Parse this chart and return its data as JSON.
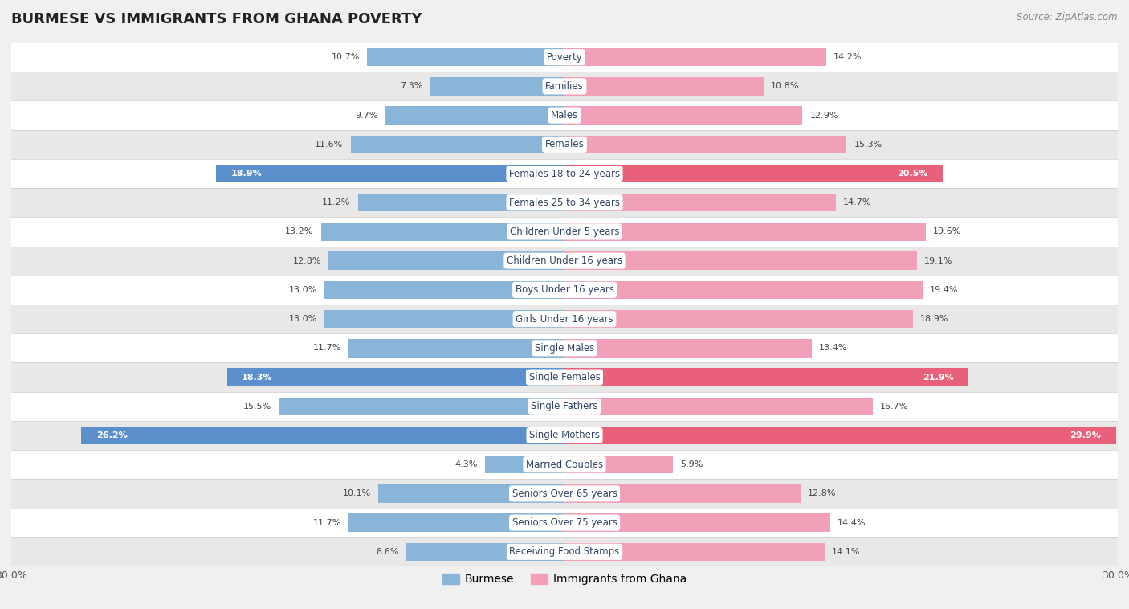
{
  "title": "BURMESE VS IMMIGRANTS FROM GHANA POVERTY",
  "source": "Source: ZipAtlas.com",
  "categories": [
    "Poverty",
    "Families",
    "Males",
    "Females",
    "Females 18 to 24 years",
    "Females 25 to 34 years",
    "Children Under 5 years",
    "Children Under 16 years",
    "Boys Under 16 years",
    "Girls Under 16 years",
    "Single Males",
    "Single Females",
    "Single Fathers",
    "Single Mothers",
    "Married Couples",
    "Seniors Over 65 years",
    "Seniors Over 75 years",
    "Receiving Food Stamps"
  ],
  "burmese": [
    10.7,
    7.3,
    9.7,
    11.6,
    18.9,
    11.2,
    13.2,
    12.8,
    13.0,
    13.0,
    11.7,
    18.3,
    15.5,
    26.2,
    4.3,
    10.1,
    11.7,
    8.6
  ],
  "ghana": [
    14.2,
    10.8,
    12.9,
    15.3,
    20.5,
    14.7,
    19.6,
    19.1,
    19.4,
    18.9,
    13.4,
    21.9,
    16.7,
    29.9,
    5.9,
    12.8,
    14.4,
    14.1
  ],
  "burmese_color": "#8ab4d8",
  "ghana_color": "#f2a0b8",
  "burmese_highlight_color": "#5b90cc",
  "ghana_highlight_color": "#e8607a",
  "highlight_rows": [
    4,
    11,
    13
  ],
  "axis_max": 30.0,
  "background_color": "#f0f0f0",
  "row_bg_light": "#ffffff",
  "row_bg_dark": "#e8e8e8",
  "legend_burmese": "Burmese",
  "legend_ghana": "Immigrants from Ghana",
  "title_fontsize": 13,
  "source_fontsize": 8.5
}
